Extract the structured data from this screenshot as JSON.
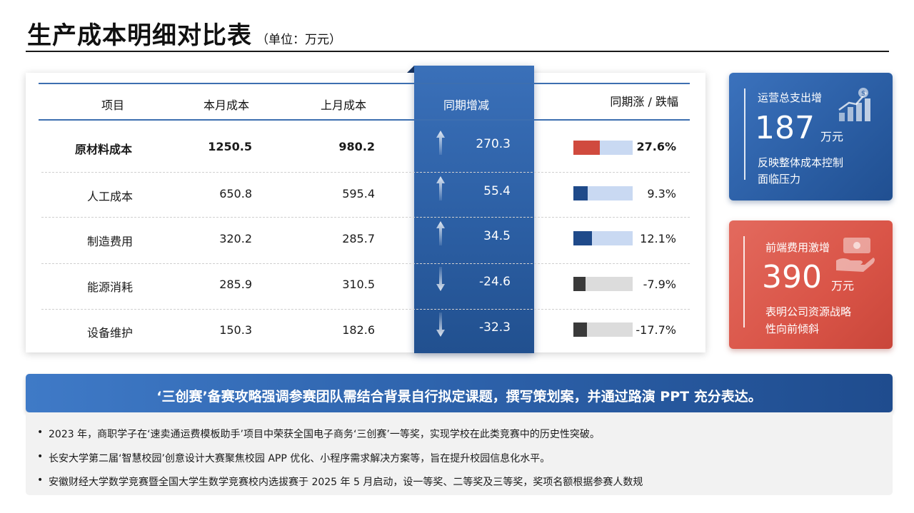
{
  "title": {
    "main": "生产成本明细对比表",
    "unit": "（单位：万元）"
  },
  "table": {
    "headers": [
      "项目",
      "本月成本",
      "上月成本",
      "同期增减",
      "同期涨 / 跌幅"
    ],
    "rows": [
      {
        "item": "原材料成本",
        "this_month": "1250.5",
        "last_month": "980.2",
        "change": "270.3",
        "direction": "up",
        "rate": "27.6%",
        "bold": true,
        "bar_color": "#d04a3e",
        "bar_bg": "#c9d9f2",
        "rate_value": 0.44
      },
      {
        "item": "人工成本",
        "this_month": "650.8",
        "last_month": "595.4",
        "change": "55.4",
        "direction": "up",
        "rate": "9.3%",
        "bold": false,
        "bar_color": "#1f4a8a",
        "bar_bg": "#c9d9f2",
        "rate_value": 0.24
      },
      {
        "item": "制造费用",
        "this_month": "320.2",
        "last_month": "285.7",
        "change": "34.5",
        "direction": "up",
        "rate": "12.1%",
        "bold": false,
        "bar_color": "#1f4a8a",
        "bar_bg": "#c9d9f2",
        "rate_value": 0.31
      },
      {
        "item": "能源消耗",
        "this_month": "285.9",
        "last_month": "310.5",
        "change": "-24.6",
        "direction": "down",
        "rate": "-7.9%",
        "bold": false,
        "bar_color": "#3a3a3a",
        "bar_bg": "#dcdcdc",
        "rate_value": 0.21
      },
      {
        "item": "设备维护",
        "this_month": "150.3",
        "last_month": "182.6",
        "change": "-32.3",
        "direction": "down",
        "rate": "-17.7%",
        "bold": false,
        "bar_color": "#3a3a3a",
        "bar_bg": "#dcdcdc",
        "rate_value": 0.23
      }
    ]
  },
  "cards": {
    "blue": {
      "label": "运营总支出增",
      "value": "187",
      "unit": "万元",
      "desc1": "反映整体成本控制",
      "desc2": "面临压力",
      "icon": "growth-chart-icon"
    },
    "red": {
      "label": "前端费用激增",
      "value": "390",
      "unit": "万元",
      "desc1": "表明公司资源战略",
      "desc2": "性向前倾斜",
      "icon": "money-hand-icon"
    }
  },
  "banner": {
    "text": "‘三创赛’备赛攻略强调参赛团队需结合背景自行拟定课题，撰写策划案，并通过路演 PPT 充分表达。",
    "notes": [
      "2023 年，商职学子在‘速卖通运费模板助手’项目中荣获全国电子商务‘三创赛’一等奖，实现学校在此类竞赛中的历史性突破。",
      "长安大学第二届‘智慧校园’创意设计大赛聚焦校园 APP 优化、小程序需求解决方案等，旨在提升校园信息化水平。",
      "安徽财经大学数学竞赛暨全国大学生数学竞赛校内选拔赛于 2025 年 5 月启动，设一等奖、二等奖及三等奖，奖项名额根据参赛人数规"
    ]
  }
}
